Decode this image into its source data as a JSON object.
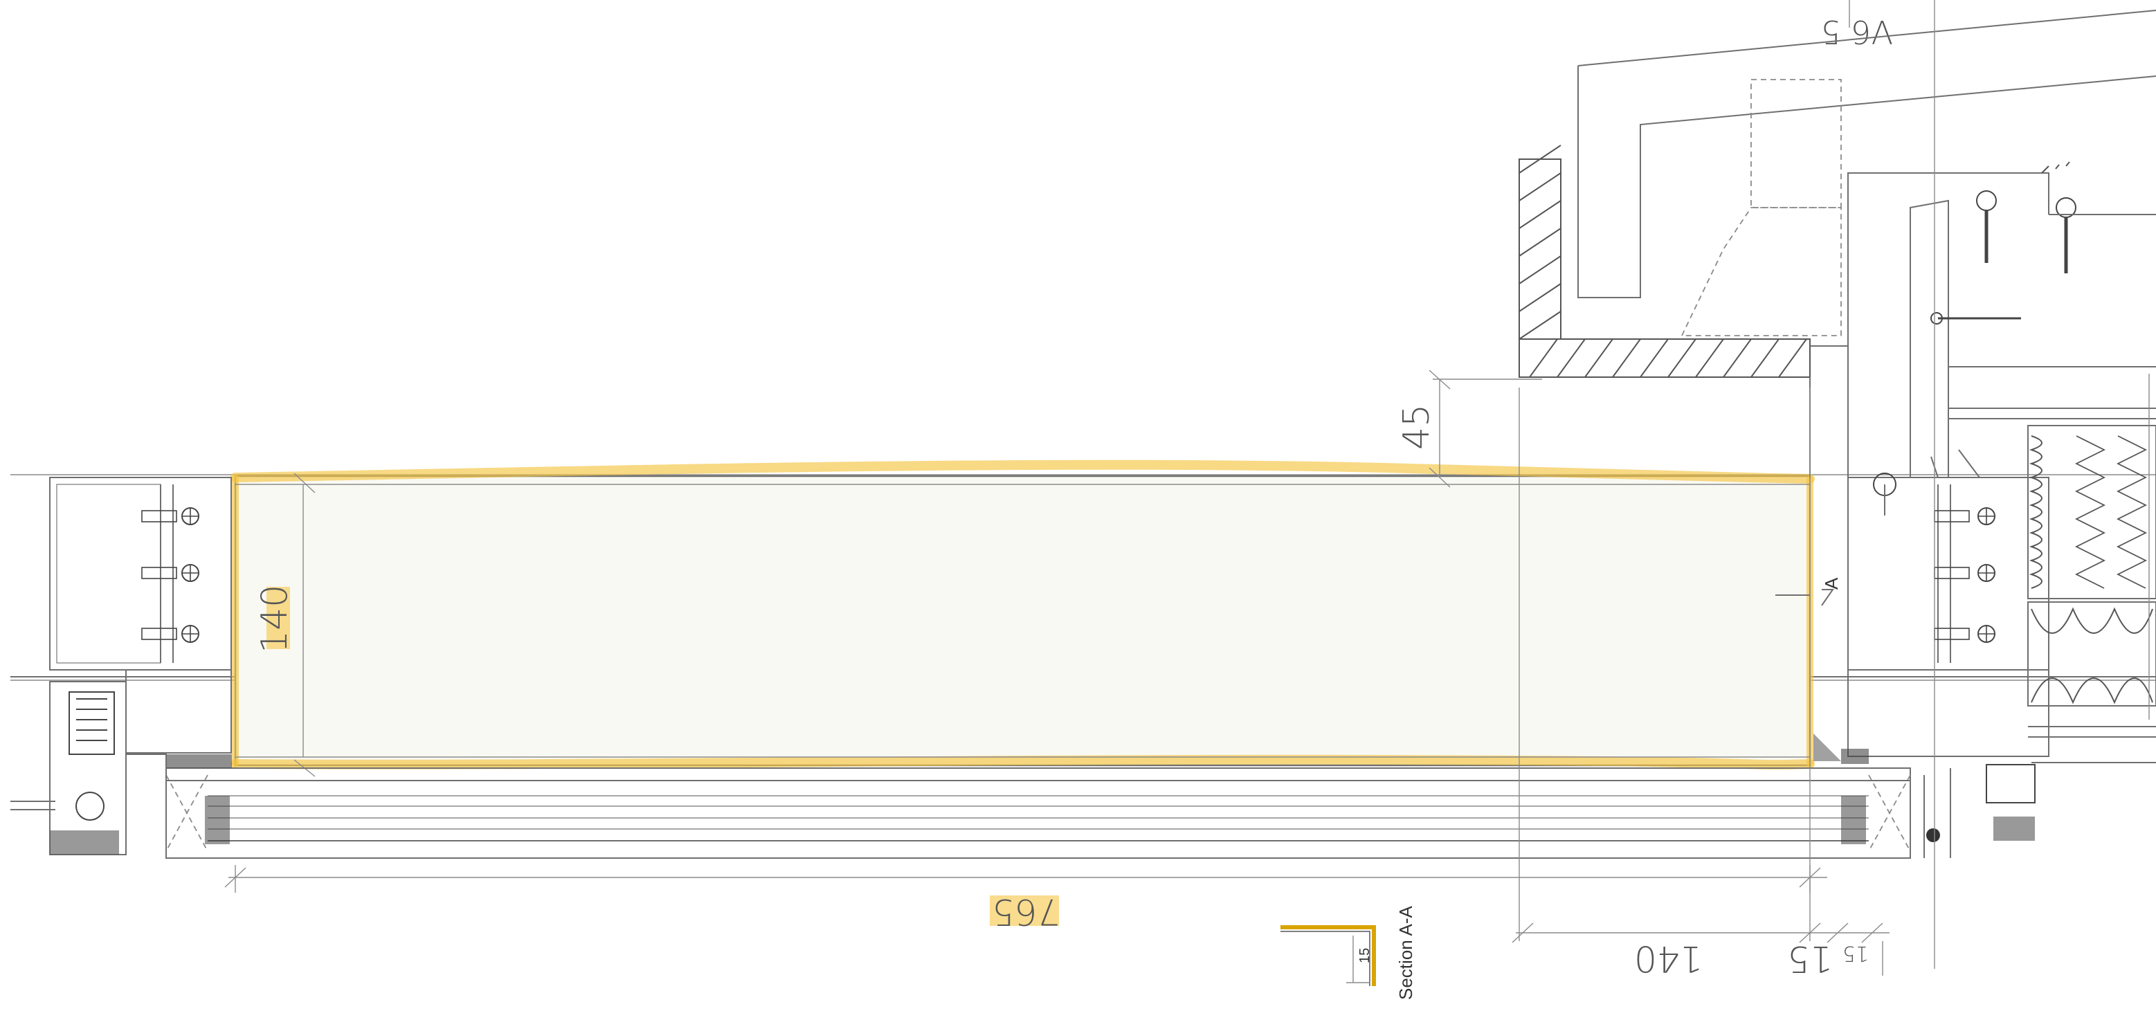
{
  "drawing": {
    "dim_main_width": "765",
    "dim_panel_height": "140",
    "dim_top_offset": "45",
    "dim_right_140": "140",
    "dim_right_15": "15",
    "dim_right_15b": "15",
    "section_marker": "A",
    "section_label": "Section A-A",
    "section_dim": "15",
    "top_text": "V6 5"
  },
  "colors": {
    "highlight": "#f5c542",
    "line": "#6f6f6f",
    "hatch": "#555555",
    "background": "#ffffff"
  }
}
